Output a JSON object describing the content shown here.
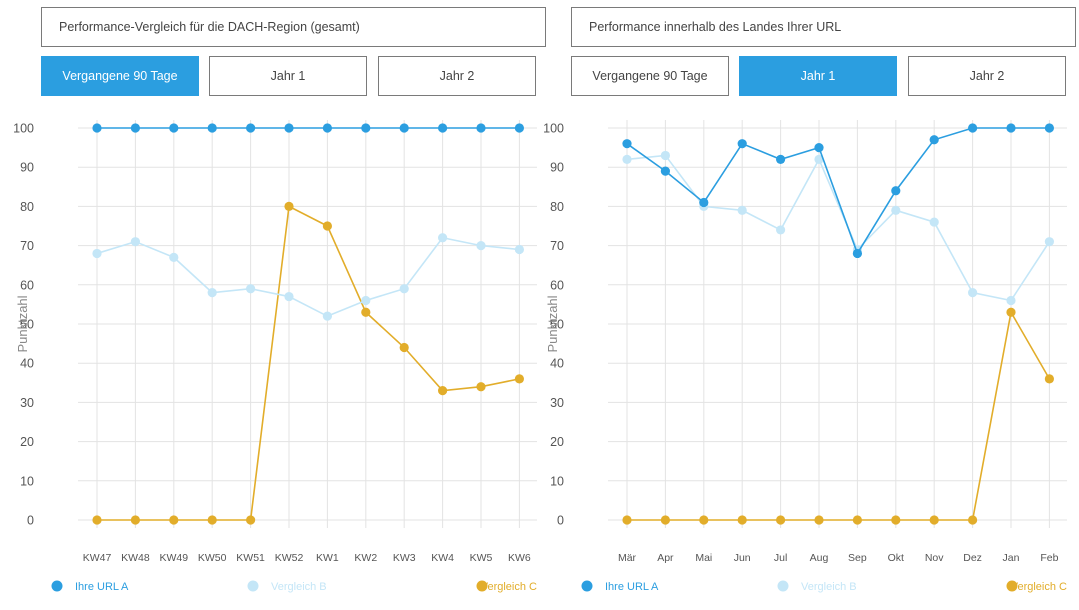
{
  "colors": {
    "a": "#2b9ee0",
    "b": "#c4e6f7",
    "c": "#e2ad2a",
    "grid": "#e3e3e3"
  },
  "panels": [
    {
      "title": "Performance-Vergleich für die DACH-Region (gesamt)",
      "tabs": [
        "Vergangene 90 Tage",
        "Jahr 1",
        "Jahr 2"
      ],
      "active_tab": 0
    },
    {
      "title": "Performance innerhalb des Landes Ihrer URL",
      "tabs": [
        "Vergangene 90 Tage",
        "Jahr 1",
        "Jahr 2"
      ],
      "active_tab": 1
    }
  ],
  "chart_data": [
    {
      "type": "line",
      "categories": [
        "KW47",
        "KW48",
        "KW49",
        "KW50",
        "KW51",
        "KW52",
        "KW1",
        "KW2",
        "KW3",
        "KW4",
        "KW5",
        "KW6"
      ],
      "ylabel": "Punktzahl",
      "ylim": [
        0,
        100
      ],
      "yticks": [
        0,
        10,
        20,
        30,
        40,
        50,
        60,
        70,
        80,
        90,
        100
      ],
      "grid": true,
      "legend_position": "bottom",
      "series": [
        {
          "name": "Ihre URL A",
          "color": "#2b9ee0",
          "values": [
            100,
            100,
            100,
            100,
            100,
            100,
            100,
            100,
            100,
            100,
            100,
            100
          ]
        },
        {
          "name": "Vergleich B",
          "color": "#c4e6f7",
          "values": [
            68,
            71,
            67,
            58,
            59,
            57,
            52,
            56,
            59,
            72,
            70,
            69
          ]
        },
        {
          "name": "Vergleich C",
          "color": "#e2ad2a",
          "values": [
            0,
            0,
            0,
            0,
            0,
            80,
            75,
            53,
            44,
            33,
            34,
            36
          ]
        }
      ]
    },
    {
      "type": "line",
      "categories": [
        "Mär",
        "Apr",
        "Mai",
        "Jun",
        "Jul",
        "Aug",
        "Sep",
        "Okt",
        "Nov",
        "Dez",
        "Jan",
        "Feb"
      ],
      "ylabel": "Punktzahl",
      "ylim": [
        0,
        100
      ],
      "yticks": [
        0,
        10,
        20,
        30,
        40,
        50,
        60,
        70,
        80,
        90,
        100
      ],
      "grid": true,
      "legend_position": "bottom",
      "series": [
        {
          "name": "Ihre URL A",
          "color": "#2b9ee0",
          "values": [
            96,
            89,
            81,
            96,
            92,
            95,
            68,
            84,
            97,
            100,
            100,
            100
          ]
        },
        {
          "name": "Vergleich B",
          "color": "#c4e6f7",
          "values": [
            92,
            93,
            80,
            79,
            74,
            92,
            69,
            79,
            76,
            58,
            56,
            71
          ]
        },
        {
          "name": "Vergleich C",
          "color": "#e2ad2a",
          "values": [
            0,
            0,
            0,
            0,
            0,
            0,
            0,
            0,
            0,
            0,
            53,
            36
          ]
        }
      ]
    }
  ]
}
